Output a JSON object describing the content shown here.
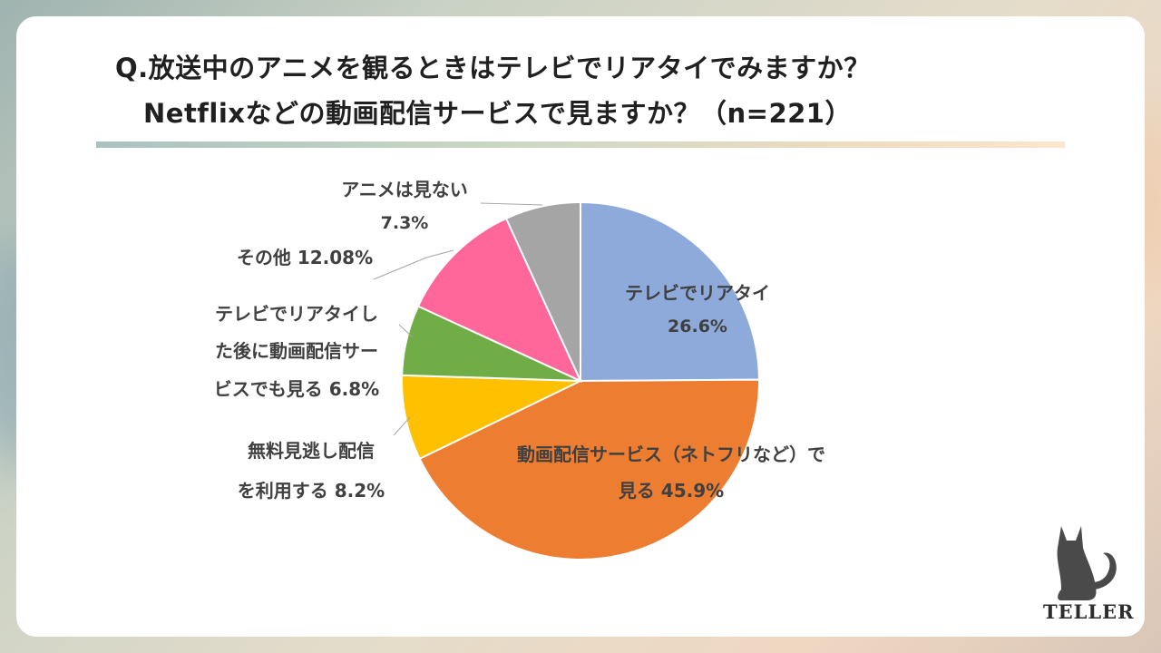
{
  "title": {
    "line1": "Q.放送中のアニメを観るときはテレビでリアタイでみますか？",
    "line2": "Netflixなどの動画配信サービスで見ますか？（n=221）"
  },
  "brand": {
    "logo_text": "TELLER",
    "logo_icon": "cat-icon"
  },
  "colors": {
    "slice_tv_realtime": "#8eaadb",
    "slice_streaming": "#ed7d31",
    "slice_free_catchup": "#ffc000",
    "slice_both": "#70ad47",
    "slice_other": "#ff6699",
    "slice_no_anime": "#a5a5a5"
  },
  "chart_data": {
    "type": "pie",
    "title": "Q.放送中のアニメを観るときはテレビでリアタイでみますか？ Netflixなどの動画配信サービスで見ますか？（n=221）",
    "slices": [
      {
        "label": "テレビでリアタイ",
        "value": 26.6,
        "value_text": "26.6%"
      },
      {
        "label": "動画配信サービス（ネトフリなど）で見る",
        "value": 45.9,
        "value_text": "45.9%"
      },
      {
        "label": "無料見逃し配信を利用する",
        "value": 8.2,
        "value_text": "8.2%"
      },
      {
        "label": "テレビでリアタイした後に動画配信サービスでも見る",
        "value": 6.8,
        "value_text": "6.8%"
      },
      {
        "label": "その他",
        "value": 12.08,
        "value_text": "12.08%"
      },
      {
        "label": "アニメは見ない",
        "value": 7.3,
        "value_text": "7.3%"
      }
    ],
    "label_lines": {
      "tv_realtime": [
        "テレビでリアタイ",
        "26.6%"
      ],
      "streaming": [
        "動画配信サービス（ネトフリなど）で",
        "見る 45.9%"
      ],
      "free_catchup": [
        "無料見逃し配信",
        "を利用する 8.2%"
      ],
      "both": [
        "テレビでリアタイし",
        "た後に動画配信サー",
        "ビスでも見る 6.8%"
      ],
      "other": [
        "その他 12.08%"
      ],
      "no_anime": [
        "アニメは見ない",
        "7.3%"
      ]
    }
  }
}
